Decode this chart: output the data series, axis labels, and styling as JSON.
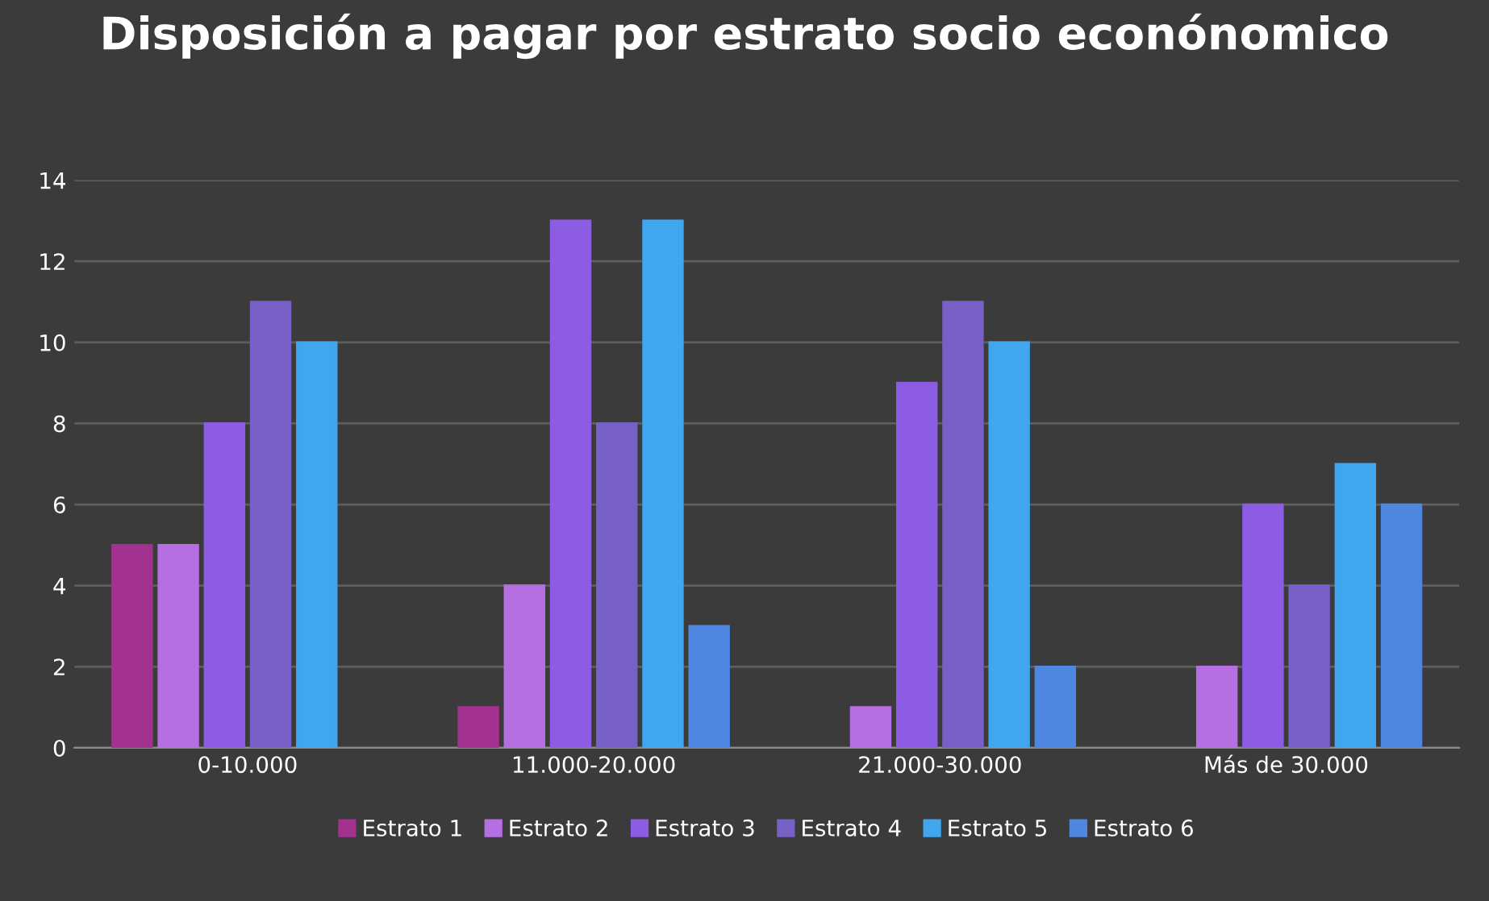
{
  "chart_data": {
    "type": "bar",
    "title": "Disposición a pagar por estrato socio econónomico",
    "categories": [
      "0-10.000",
      "11.000-20.000",
      "21.000-30.000",
      "Más de 30.000"
    ],
    "series": [
      {
        "name": "Estrato 1",
        "color": "#a2318f",
        "values": [
          5,
          1,
          null,
          null
        ]
      },
      {
        "name": "Estrato 2",
        "color": "#b66fe2",
        "values": [
          5,
          4,
          1,
          2
        ]
      },
      {
        "name": "Estrato 3",
        "color": "#8c5ce2",
        "values": [
          8,
          13,
          9,
          6
        ]
      },
      {
        "name": "Estrato 4",
        "color": "#7760c6",
        "values": [
          11,
          8,
          11,
          4
        ]
      },
      {
        "name": "Estrato 5",
        "color": "#40a6ee",
        "values": [
          10,
          13,
          10,
          7
        ]
      },
      {
        "name": "Estrato 6",
        "color": "#4f86e0",
        "values": [
          null,
          3,
          2,
          6
        ]
      }
    ],
    "ylim": [
      0,
      14
    ],
    "yticks": [
      0,
      2,
      4,
      6,
      8,
      10,
      12,
      14
    ],
    "grid": "y",
    "legend": "bottom"
  }
}
